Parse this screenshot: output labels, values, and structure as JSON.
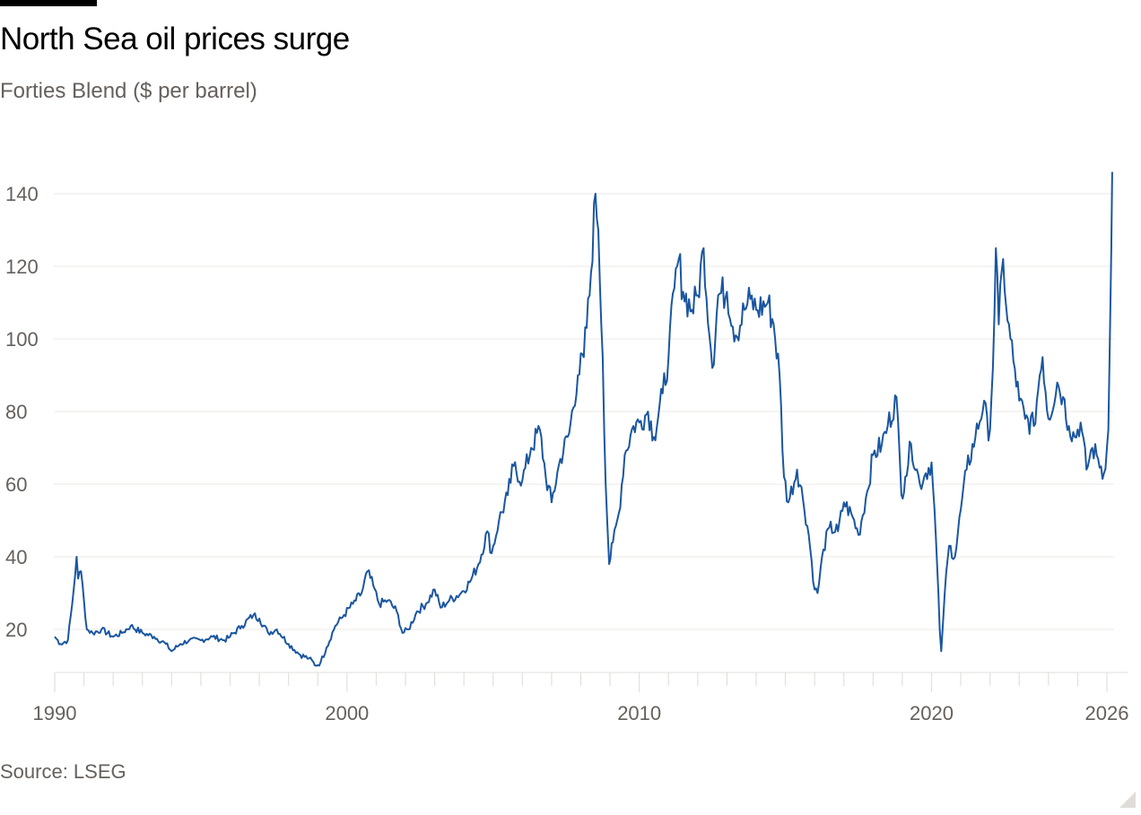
{
  "header": {
    "title": "North Sea oil prices surge",
    "subtitle": "Forties Blend ($ per barrel)"
  },
  "footer": {
    "source": "Source: LSEG"
  },
  "colors": {
    "line": "#1a56a0",
    "grid": "#ece9e6",
    "axis_text": "#66605c"
  },
  "chart_data": {
    "type": "line",
    "title": "North Sea oil prices surge",
    "subtitle": "Forties Blend ($ per barrel)",
    "xlabel": "",
    "ylabel": "",
    "xlim": [
      1990,
      2026.2
    ],
    "ylim": [
      8,
      148
    ],
    "x_ticks": [
      1990,
      2000,
      2010,
      2020,
      2026
    ],
    "x_tick_labels": [
      "1990",
      "2000",
      "2010",
      "2020",
      "2026"
    ],
    "y_ticks": [
      20,
      40,
      60,
      80,
      100,
      120,
      140
    ],
    "y_tick_labels": [
      "20",
      "40",
      "60",
      "80",
      "100",
      "120",
      "140"
    ],
    "grid": true,
    "legend": "none",
    "series": [
      {
        "points": [
          [
            1990.0,
            18
          ],
          [
            1990.2,
            16
          ],
          [
            1990.45,
            17
          ],
          [
            1990.6,
            27
          ],
          [
            1990.75,
            40
          ],
          [
            1990.8,
            34
          ],
          [
            1990.9,
            36
          ],
          [
            1991.0,
            28
          ],
          [
            1991.1,
            20
          ],
          [
            1991.3,
            19
          ],
          [
            1991.6,
            20
          ],
          [
            1992.0,
            18
          ],
          [
            1992.3,
            19
          ],
          [
            1992.6,
            21
          ],
          [
            1993.0,
            19
          ],
          [
            1993.4,
            18
          ],
          [
            1993.8,
            16
          ],
          [
            1994.0,
            14
          ],
          [
            1994.3,
            16
          ],
          [
            1994.6,
            17
          ],
          [
            1995.0,
            17
          ],
          [
            1995.4,
            18
          ],
          [
            1995.8,
            17
          ],
          [
            1996.0,
            18
          ],
          [
            1996.4,
            21
          ],
          [
            1996.8,
            24
          ],
          [
            1997.0,
            23
          ],
          [
            1997.3,
            19
          ],
          [
            1997.6,
            20
          ],
          [
            1998.0,
            16
          ],
          [
            1998.4,
            13
          ],
          [
            1998.7,
            12
          ],
          [
            1998.95,
            10
          ],
          [
            1999.1,
            11
          ],
          [
            1999.3,
            15
          ],
          [
            1999.6,
            21
          ],
          [
            1999.9,
            24
          ],
          [
            2000.2,
            27
          ],
          [
            2000.5,
            30
          ],
          [
            2000.7,
            36
          ],
          [
            2000.9,
            32
          ],
          [
            2001.1,
            27
          ],
          [
            2001.4,
            28
          ],
          [
            2001.7,
            25
          ],
          [
            2001.9,
            19
          ],
          [
            2002.1,
            20
          ],
          [
            2002.4,
            25
          ],
          [
            2002.7,
            27
          ],
          [
            2003.0,
            31
          ],
          [
            2003.2,
            26
          ],
          [
            2003.5,
            28
          ],
          [
            2003.9,
            30
          ],
          [
            2004.2,
            33
          ],
          [
            2004.5,
            38
          ],
          [
            2004.8,
            47
          ],
          [
            2004.95,
            41
          ],
          [
            2005.2,
            50
          ],
          [
            2005.5,
            57
          ],
          [
            2005.7,
            65
          ],
          [
            2006.0,
            61
          ],
          [
            2006.3,
            70
          ],
          [
            2006.6,
            75
          ],
          [
            2006.8,
            62
          ],
          [
            2007.0,
            55
          ],
          [
            2007.3,
            67
          ],
          [
            2007.6,
            74
          ],
          [
            2007.9,
            90
          ],
          [
            2008.1,
            95
          ],
          [
            2008.3,
            112
          ],
          [
            2008.5,
            140
          ],
          [
            2008.6,
            130
          ],
          [
            2008.75,
            95
          ],
          [
            2008.85,
            60
          ],
          [
            2008.97,
            38
          ],
          [
            2009.1,
            44
          ],
          [
            2009.3,
            52
          ],
          [
            2009.5,
            68
          ],
          [
            2009.8,
            76
          ],
          [
            2010.0,
            77
          ],
          [
            2010.3,
            80
          ],
          [
            2010.5,
            73
          ],
          [
            2010.8,
            85
          ],
          [
            2011.0,
            95
          ],
          [
            2011.2,
            114
          ],
          [
            2011.35,
            122
          ],
          [
            2011.5,
            113
          ],
          [
            2011.8,
            108
          ],
          [
            2012.0,
            112
          ],
          [
            2012.2,
            125
          ],
          [
            2012.45,
            97
          ],
          [
            2012.5,
            92
          ],
          [
            2012.7,
            112
          ],
          [
            2013.0,
            113
          ],
          [
            2013.3,
            101
          ],
          [
            2013.6,
            108
          ],
          [
            2013.8,
            111
          ],
          [
            2014.0,
            108
          ],
          [
            2014.4,
            110
          ],
          [
            2014.6,
            104
          ],
          [
            2014.8,
            90
          ],
          [
            2014.95,
            62
          ],
          [
            2015.1,
            55
          ],
          [
            2015.4,
            64
          ],
          [
            2015.6,
            56
          ],
          [
            2015.8,
            46
          ],
          [
            2016.0,
            31
          ],
          [
            2016.1,
            30
          ],
          [
            2016.3,
            42
          ],
          [
            2016.5,
            48
          ],
          [
            2016.8,
            47
          ],
          [
            2017.0,
            55
          ],
          [
            2017.3,
            51
          ],
          [
            2017.5,
            46
          ],
          [
            2017.8,
            58
          ],
          [
            2018.0,
            68
          ],
          [
            2018.3,
            71
          ],
          [
            2018.5,
            76
          ],
          [
            2018.8,
            84
          ],
          [
            2018.97,
            57
          ],
          [
            2019.1,
            62
          ],
          [
            2019.3,
            71
          ],
          [
            2019.6,
            60
          ],
          [
            2019.8,
            63
          ],
          [
            2020.0,
            66
          ],
          [
            2020.15,
            45
          ],
          [
            2020.28,
            20
          ],
          [
            2020.33,
            14
          ],
          [
            2020.45,
            30
          ],
          [
            2020.6,
            43
          ],
          [
            2020.8,
            40
          ],
          [
            2021.0,
            53
          ],
          [
            2021.2,
            64
          ],
          [
            2021.5,
            73
          ],
          [
            2021.8,
            83
          ],
          [
            2021.95,
            72
          ],
          [
            2022.1,
            92
          ],
          [
            2022.2,
            125
          ],
          [
            2022.3,
            104
          ],
          [
            2022.45,
            122
          ],
          [
            2022.6,
            105
          ],
          [
            2022.8,
            94
          ],
          [
            2023.0,
            83
          ],
          [
            2023.2,
            78
          ],
          [
            2023.5,
            76
          ],
          [
            2023.7,
            90
          ],
          [
            2023.8,
            95
          ],
          [
            2024.0,
            78
          ],
          [
            2024.3,
            88
          ],
          [
            2024.5,
            84
          ],
          [
            2024.7,
            76
          ],
          [
            2024.9,
            73
          ],
          [
            2025.1,
            77
          ],
          [
            2025.3,
            64
          ],
          [
            2025.5,
            70
          ],
          [
            2025.7,
            67
          ],
          [
            2025.9,
            63
          ],
          [
            2026.0,
            70
          ],
          [
            2026.05,
            75
          ],
          [
            2026.1,
            100
          ],
          [
            2026.15,
            125
          ],
          [
            2026.18,
            146
          ]
        ]
      }
    ]
  }
}
